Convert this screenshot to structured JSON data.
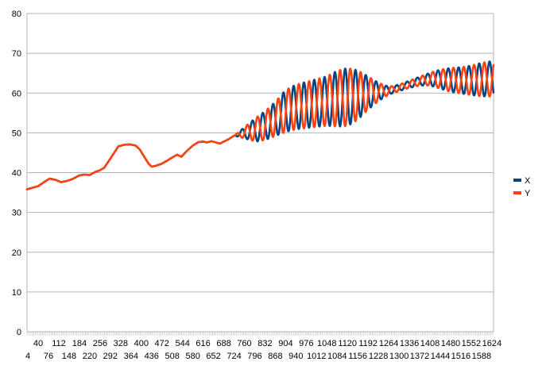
{
  "chart_data": {
    "type": "line",
    "title": "",
    "xlabel": "",
    "ylabel": "",
    "ylim": [
      0,
      80
    ],
    "yticks": [
      0,
      10,
      20,
      30,
      40,
      50,
      60,
      70,
      80
    ],
    "xlim": [
      1,
      1630
    ],
    "xticks_top": [
      40,
      112,
      184,
      256,
      328,
      400,
      472,
      544,
      616,
      688,
      760,
      832,
      904,
      976,
      1048,
      1120,
      1192,
      1264,
      1336,
      1408,
      1480,
      1552,
      1624
    ],
    "xticks_bottom": [
      4,
      76,
      148,
      220,
      292,
      364,
      436,
      508,
      580,
      652,
      724,
      796,
      868,
      940,
      1012,
      1084,
      1156,
      1228,
      1300,
      1372,
      1444,
      1516,
      1588
    ],
    "grid": "horizontal",
    "legend": "right",
    "series": [
      {
        "name": "X",
        "color": "#004586",
        "baseline": [
          [
            1,
            35.8
          ],
          [
            20,
            36.2
          ],
          [
            40,
            36.6
          ],
          [
            60,
            37.6
          ],
          [
            80,
            38.5
          ],
          [
            100,
            38.2
          ],
          [
            120,
            37.6
          ],
          [
            140,
            37.9
          ],
          [
            160,
            38.4
          ],
          [
            184,
            39.3
          ],
          [
            200,
            39.5
          ],
          [
            220,
            39.4
          ],
          [
            240,
            40.2
          ],
          [
            256,
            40.6
          ],
          [
            270,
            41.2
          ],
          [
            290,
            43.3
          ],
          [
            310,
            45.5
          ],
          [
            320,
            46.6
          ],
          [
            340,
            47.0
          ],
          [
            360,
            47.1
          ],
          [
            380,
            46.8
          ],
          [
            395,
            45.8
          ],
          [
            410,
            44.0
          ],
          [
            425,
            42.3
          ],
          [
            436,
            41.5
          ],
          [
            450,
            41.7
          ],
          [
            470,
            42.2
          ],
          [
            490,
            43.0
          ],
          [
            508,
            43.8
          ],
          [
            525,
            44.5
          ],
          [
            540,
            44.0
          ],
          [
            560,
            45.5
          ],
          [
            580,
            46.8
          ],
          [
            600,
            47.7
          ],
          [
            616,
            47.8
          ],
          [
            630,
            47.6
          ],
          [
            645,
            47.9
          ],
          [
            660,
            47.6
          ],
          [
            675,
            47.3
          ],
          [
            688,
            47.8
          ],
          [
            705,
            48.4
          ],
          [
            724,
            49.3
          ],
          [
            760,
            50.0
          ],
          [
            800,
            50.8
          ],
          [
            832,
            51.8
          ],
          [
            868,
            53.5
          ],
          [
            904,
            55.5
          ],
          [
            940,
            56.5
          ],
          [
            976,
            57.0
          ],
          [
            1012,
            57.5
          ],
          [
            1048,
            58.0
          ],
          [
            1084,
            58.6
          ],
          [
            1120,
            59.0
          ],
          [
            1156,
            59.5
          ],
          [
            1192,
            60.0
          ],
          [
            1228,
            60.3
          ],
          [
            1264,
            60.6
          ],
          [
            1300,
            61.3
          ],
          [
            1336,
            62.2
          ],
          [
            1372,
            63.0
          ],
          [
            1408,
            63.5
          ],
          [
            1444,
            63.5
          ],
          [
            1480,
            63.3
          ],
          [
            1516,
            63.2
          ],
          [
            1552,
            63.2
          ],
          [
            1588,
            63.4
          ],
          [
            1630,
            63.6
          ]
        ],
        "oscillation": {
          "start": 725,
          "period": 36,
          "phase_deg": 180,
          "amplitude": [
            [
              725,
              0
            ],
            [
              750,
              1.0
            ],
            [
              800,
              3.0
            ],
            [
              868,
              4.3
            ],
            [
              904,
              5.3
            ],
            [
              940,
              5.6
            ],
            [
              976,
              5.8
            ],
            [
              1048,
              6.2
            ],
            [
              1084,
              7.0
            ],
            [
              1120,
              7.3
            ],
            [
              1156,
              6.2
            ],
            [
              1192,
              4.2
            ],
            [
              1228,
              2.3
            ],
            [
              1264,
              1.0
            ],
            [
              1300,
              0.8
            ],
            [
              1336,
              0.9
            ],
            [
              1372,
              1.1
            ],
            [
              1408,
              1.6
            ],
            [
              1444,
              2.4
            ],
            [
              1480,
              3.0
            ],
            [
              1516,
              3.3
            ],
            [
              1552,
              3.7
            ],
            [
              1588,
              4.2
            ],
            [
              1630,
              4.5
            ]
          ]
        }
      },
      {
        "name": "Y",
        "color": "#ff420e",
        "baseline": [
          [
            1,
            35.8
          ],
          [
            20,
            36.2
          ],
          [
            40,
            36.6
          ],
          [
            60,
            37.6
          ],
          [
            80,
            38.5
          ],
          [
            100,
            38.2
          ],
          [
            120,
            37.6
          ],
          [
            140,
            37.9
          ],
          [
            160,
            38.4
          ],
          [
            184,
            39.3
          ],
          [
            200,
            39.5
          ],
          [
            220,
            39.4
          ],
          [
            240,
            40.2
          ],
          [
            256,
            40.6
          ],
          [
            270,
            41.2
          ],
          [
            290,
            43.3
          ],
          [
            310,
            45.5
          ],
          [
            320,
            46.6
          ],
          [
            340,
            47.0
          ],
          [
            360,
            47.1
          ],
          [
            380,
            46.8
          ],
          [
            395,
            45.8
          ],
          [
            410,
            44.0
          ],
          [
            425,
            42.3
          ],
          [
            436,
            41.5
          ],
          [
            450,
            41.7
          ],
          [
            470,
            42.2
          ],
          [
            490,
            43.0
          ],
          [
            508,
            43.8
          ],
          [
            525,
            44.5
          ],
          [
            540,
            44.0
          ],
          [
            560,
            45.5
          ],
          [
            580,
            46.8
          ],
          [
            600,
            47.7
          ],
          [
            616,
            47.8
          ],
          [
            630,
            47.6
          ],
          [
            645,
            47.9
          ],
          [
            660,
            47.6
          ],
          [
            675,
            47.3
          ],
          [
            688,
            47.8
          ],
          [
            705,
            48.4
          ],
          [
            724,
            49.3
          ],
          [
            760,
            50.0
          ],
          [
            800,
            50.8
          ],
          [
            832,
            51.8
          ],
          [
            868,
            53.5
          ],
          [
            904,
            55.5
          ],
          [
            940,
            56.5
          ],
          [
            976,
            57.0
          ],
          [
            1012,
            57.5
          ],
          [
            1048,
            58.0
          ],
          [
            1084,
            58.6
          ],
          [
            1120,
            59.0
          ],
          [
            1156,
            59.5
          ],
          [
            1192,
            60.0
          ],
          [
            1228,
            60.3
          ],
          [
            1264,
            60.6
          ],
          [
            1300,
            61.3
          ],
          [
            1336,
            62.2
          ],
          [
            1372,
            63.0
          ],
          [
            1408,
            63.5
          ],
          [
            1444,
            63.5
          ],
          [
            1480,
            63.3
          ],
          [
            1516,
            63.2
          ],
          [
            1552,
            63.2
          ],
          [
            1588,
            63.4
          ],
          [
            1630,
            63.6
          ]
        ],
        "oscillation": {
          "start": 725,
          "period": 36,
          "phase_deg": 0,
          "amplitude": [
            [
              725,
              0
            ],
            [
              750,
              1.0
            ],
            [
              800,
              3.0
            ],
            [
              868,
              4.3
            ],
            [
              904,
              5.3
            ],
            [
              940,
              5.6
            ],
            [
              976,
              5.8
            ],
            [
              1048,
              6.2
            ],
            [
              1084,
              7.0
            ],
            [
              1120,
              7.3
            ],
            [
              1156,
              6.2
            ],
            [
              1192,
              4.2
            ],
            [
              1228,
              2.3
            ],
            [
              1264,
              1.0
            ],
            [
              1300,
              0.8
            ],
            [
              1336,
              0.9
            ],
            [
              1372,
              1.1
            ],
            [
              1408,
              1.6
            ],
            [
              1444,
              2.4
            ],
            [
              1480,
              3.0
            ],
            [
              1516,
              3.3
            ],
            [
              1552,
              3.7
            ],
            [
              1588,
              4.2
            ],
            [
              1630,
              4.5
            ]
          ]
        }
      }
    ]
  },
  "legend": {
    "items": [
      {
        "label": "X",
        "color": "#004586"
      },
      {
        "label": "Y",
        "color": "#ff420e"
      }
    ]
  }
}
